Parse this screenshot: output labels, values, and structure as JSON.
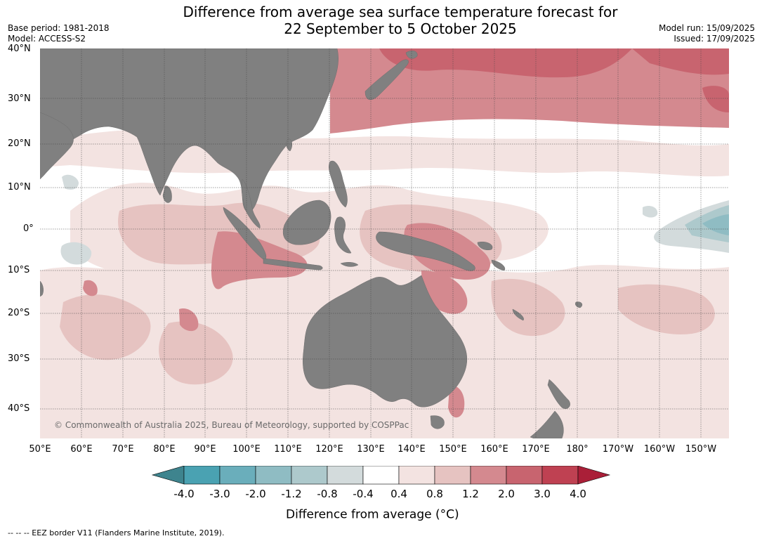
{
  "title_line1": "Difference from average sea surface temperature forecast for",
  "title_line2": "22 September to 5 October 2025",
  "base_period": "Base period: 1981-2018",
  "model": "Model: ACCESS-S2",
  "model_run": "Model run: 15/09/2025",
  "issued": "Issued: 17/09/2025",
  "lat_labels": [
    "40°N",
    "30°N",
    "20°N",
    "10°N",
    "0°",
    "10°S",
    "20°S",
    "30°S",
    "40°S"
  ],
  "lon_labels": [
    "50°E",
    "60°E",
    "70°E",
    "80°E",
    "90°E",
    "100°E",
    "110°E",
    "120°E",
    "130°E",
    "140°E",
    "150°E",
    "160°E",
    "170°E",
    "180°",
    "170°W",
    "160°W",
    "150°W"
  ],
  "copyright": "© Commonwealth of Australia 2025, Bureau of Meteorology, supported by COSPPac",
  "colorbar": {
    "ticks": [
      "-4.0",
      "-3.0",
      "-2.0",
      "-1.2",
      "-0.8",
      "-0.4",
      "0.4",
      "0.8",
      "1.2",
      "2.0",
      "3.0",
      "4.0"
    ],
    "colors": [
      "#3e848e",
      "#4aa2b2",
      "#6aaebb",
      "#8fbcc3",
      "#adc9cc",
      "#d3dbdc",
      "#ffffff",
      "#f3e3e1",
      "#e6c3c1",
      "#d4898f",
      "#c8646f",
      "#bf4152",
      "#aa1f38"
    ],
    "label": "Difference from average (",
    "label_unit": "°C)"
  },
  "footer": "--  --  -- EEZ border V11 (Flanders Marine Institute, 2019).",
  "colors": {
    "land": "#808080",
    "gridline": "#444444"
  }
}
